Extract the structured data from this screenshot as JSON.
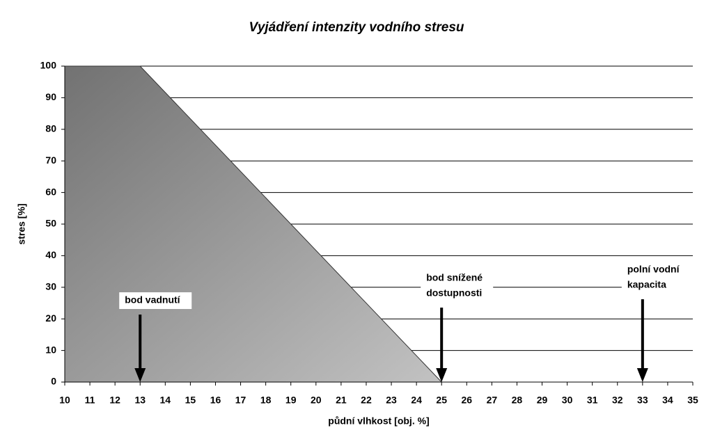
{
  "chart_data": {
    "type": "area",
    "title": "Vyjádření intenzity vodního stresu",
    "x_label": "půdní vlhkost [obj. %]",
    "y_label": "stres [%]",
    "x": [
      10,
      13,
      25
    ],
    "values": [
      100,
      100,
      0
    ],
    "fill_gradient": [
      "#727272",
      "#c2c2c2"
    ],
    "edge_color": "#333333",
    "xlim": [
      10,
      35
    ],
    "ylim": [
      0,
      100
    ],
    "xticks": [
      10,
      11,
      12,
      13,
      14,
      15,
      16,
      17,
      18,
      19,
      20,
      21,
      22,
      23,
      24,
      25,
      26,
      27,
      28,
      29,
      30,
      31,
      32,
      33,
      34,
      35
    ],
    "yticks": [
      0,
      10,
      20,
      30,
      40,
      50,
      60,
      70,
      80,
      90,
      100
    ],
    "grid": true,
    "annotations": [
      {
        "lines": [
          "bod vadnutí"
        ],
        "x": 13
      },
      {
        "lines": [
          "bod snížené",
          "dostupnosti"
        ],
        "x": 25
      },
      {
        "lines": [
          "polní vodní",
          "kapacita"
        ],
        "x": 33
      }
    ]
  }
}
